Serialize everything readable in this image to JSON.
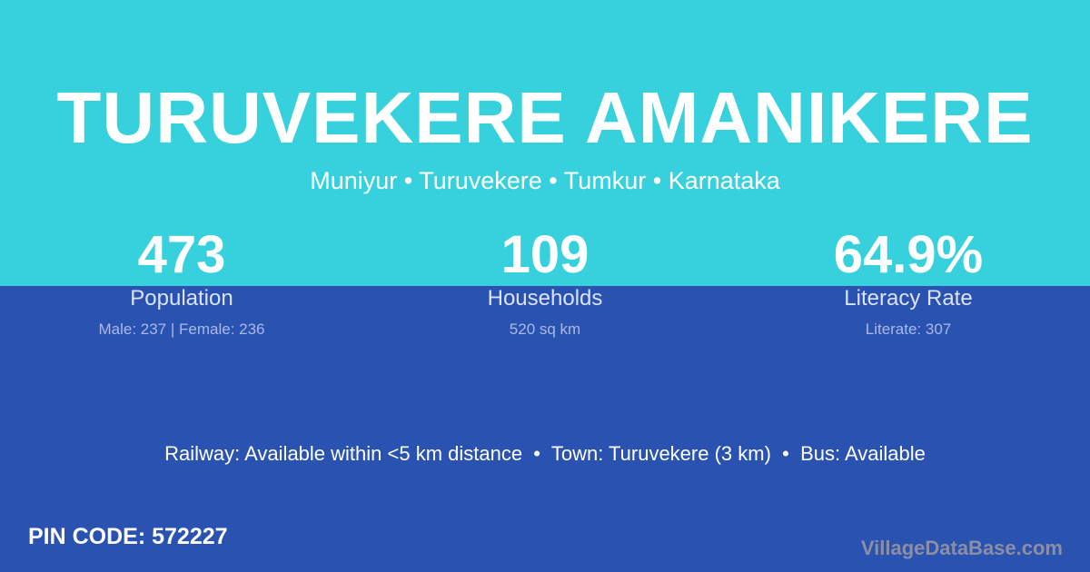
{
  "colors": {
    "top_bg": "#36D1DC",
    "bottom_bg": "#2A52B0",
    "watermark": "#8A8FA6"
  },
  "title": "TURUVEKERE AMANIKERE",
  "subtitle": "Muniyur • Turuvekere • Tumkur • Karnataka",
  "stats": [
    {
      "value": "473",
      "label": "Population",
      "detail": "Male: 237 | Female: 236"
    },
    {
      "value": "109",
      "label": "Households",
      "detail": "520 sq km"
    },
    {
      "value": "64.9%",
      "label": "Literacy Rate",
      "detail": "Literate: 307"
    }
  ],
  "facilities": "Railway: Available within <5 km distance  •  Town: Turuvekere (3 km)  •  Bus: Available",
  "pin_code": "PIN CODE: 572227",
  "brand": "VillageDataBase.com"
}
